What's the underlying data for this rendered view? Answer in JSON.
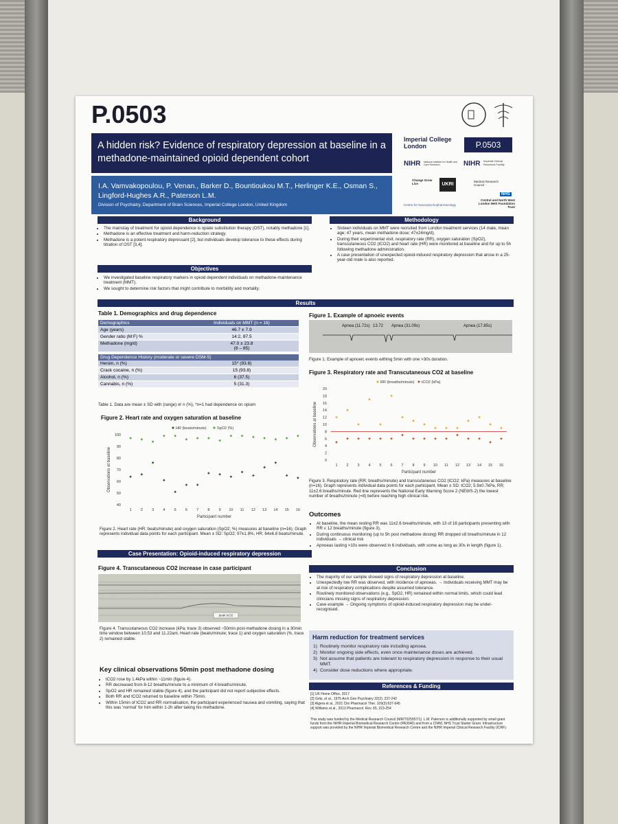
{
  "header": {
    "code": "P.0503",
    "title": "A hidden risk? Evidence of respiratory depression at baseline in a methadone-maintained opioid dependent cohort",
    "authors": "I.A. Vamvakopoulou, P. Venan., Barker D., Bountioukou M.T., Herlinger K.E., Osman S., Lingford-Hughes A.R., Paterson L.M.",
    "affiliation": "Division of Psychiatry, Department of Brain Sciences, Imperial College London, United Kingdom"
  },
  "logos": {
    "imperial": "Imperial College London",
    "badge": "P.0503",
    "nihr1": "NIHR",
    "nihr1_sub": "National Institute for Health and Care Research",
    "nihr2": "NIHR",
    "nihr2_sub": "Imperial Clinical Research Facility",
    "cgl": "Change Grow Live",
    "ukri": "UKRI",
    "mrc": "Medical Research Council",
    "cnp": "Centre for Neuropsychopharmacology",
    "nhs": "NHS",
    "nhs_sub": "Central and North West London NHS Foundation Trust"
  },
  "background": {
    "heading": "Background",
    "items": [
      "The mainstay of treatment for opioid dependence is opiate substitution therapy (OST), notably methadone [1].",
      "Methadone is an effective treatment and harm-reduction strategy.",
      "Methadone is a potent respiratory depressant [2], but individuals develop tolerance to these effects during titration of OST [3,4]."
    ]
  },
  "objectives": {
    "heading": "Objectives",
    "items": [
      "We investigated baseline respiratory markers in opioid dependent individuals on methadone-maintenance treatment (MMT).",
      "We sought to determine risk factors that might contribute to morbidity and mortality."
    ]
  },
  "methodology": {
    "heading": "Methodology",
    "items": [
      "Sixteen individuals on MMT were recruited from London treatment services (14 male, mean age; 47 years, mean methadone dose; 47±24mg/d).",
      "During their experimental visit, respiratory rate (RR), oxygen saturation (SpO2), transcutaneous CO2 (tCO2) and heart rate (HR) were monitored at baseline and for up to 5h following methadone administration.",
      "A case presentation of unexpected opioid-induced respiratory depression that arose in a 25-year-old male is also reported."
    ]
  },
  "results_heading": "Results",
  "table1": {
    "title": "Table 1. Demographics and drug dependence",
    "header": [
      "Demographics",
      "Individuals on MMT (n = 16)"
    ],
    "rows": [
      [
        "Age (years)",
        "46.7 ± 7.9"
      ],
      [
        "Gender ratio (M:F) %",
        "14:2, 87.5"
      ],
      [
        "Methadone (mg/d)",
        "47.0 ± 23.8\n(8 – 85)"
      ]
    ],
    "header2": "Drug Dependence History (moderate or severe DSM-5)",
    "rows2": [
      [
        "Heroin, n (%)",
        "15* (93.8)"
      ],
      [
        "Crack cocaine, n (%)",
        "15 (93.8)"
      ],
      [
        "Alcohol, n (%)",
        "6 (37.5)"
      ],
      [
        "Cannabis, n (%)",
        "5 (31.3)"
      ]
    ],
    "caption": "Table 1. Data are mean ± SD with (range) or n (%), *n=1 had dependence on opium"
  },
  "figure1": {
    "title": "Figure 1. Example of apnoeic events",
    "labels": [
      "Apnea (11.72s)",
      "13.72",
      "Apnea (31.09s)",
      "Apnea (17.85s)"
    ],
    "caption": "Figure 1. Example of apnoeic events withing 5min with one >30s duration."
  },
  "figure2": {
    "title": "Figure 2. Heart rate and oxygen saturation at baseline",
    "caption": "Figure 2. Heart rate (HR; beats/minute) and oxygen saturation (SpO2; %) measures at baseline (n=16). Graph represents individual data points for each participant. Mean ± SD: SpO2; 97±1.8%, HR; 64±6.8 beats/minute."
  },
  "figure3": {
    "title": "Figure 3. Respiratory rate and Transcutaneous CO2 at baseline",
    "caption": "Figure 3. Respiratory rate (RR; breaths/minute) and transcutaneous CO2 (tCO2; kPa) measures at baseline (n=16). Graph represents individual data points for each participant. Mean ± SD: tCO2; 5.9±0.7kPa, RR; 11±2.6 breaths/minute. Red line represents the National Early Warning Score 2 (NEWS-2) the lowest number of breaths/minute (=8) before reaching high clinical risk."
  },
  "case": {
    "heading": "Case Presentation: Opioid-induced respiratory depression",
    "figure_title": "Figure 4. Transcutaneous CO2 increase in case participant",
    "image_label": "peak tcO2",
    "caption": "Figure 4. Transcutaneous CO2 increase (kPa; trace 3) observed ~50min post-methadone dosing in a 30min time window between 10.53 and 11.22am. Heart rate (beats/minute; trace 1) and oxygen saturation (%, trace 2) remained stable."
  },
  "key_observations": {
    "heading": "Key clinical observations 50min post methadone dosing",
    "items": [
      "tCO2 rose by 1.4kPa within ~11min (figure 4).",
      "RR decreased from 8-12 breaths/minute to a minimum of 4 breaths/minute.",
      "SpO2 and HR remained stable (figure 4), and the participant did not report subjective effects.",
      "Both RR and tCO2 returned to baseline within 75min.",
      "Within 15min of tCO2 and RR normalisation, the participant experienced nausea and vomiting, saying that this was 'normal' for him within 1-2h after taking his methadone."
    ]
  },
  "outcomes": {
    "heading": "Outcomes",
    "items": [
      "At baseline, the mean resting RR was 11±2.6 breaths/minute, with 13 of 16 participants presenting with RR ≤ 12 breaths/minute (figure 3).",
      "During continuous monitoring (up to 5h post methadone dosing) RR dropped ≤8 breaths/minute in 12 individuals → clinical risk",
      "Apnoeas lasting >10s were observed in 6 individuals, with some as long as 30s in length (figure 1)."
    ]
  },
  "conclusion": {
    "heading": "Conclusion",
    "items": [
      "The majority of our sample showed signs of respiratory depression at baseline.",
      "Unexpectedly low RR was observed, with incidence of apnoeas. → Individuals receiving MMT may be at risk of respiratory complications despite assumed tolerance.",
      "Routinely monitored observations (e.g., SpO2, HR) remained within normal limits, which could lead clinicians missing signs of respiratory depression.",
      "Case example → Ongoing symptoms of opioid-induced respiratory depression may be under-recognised."
    ]
  },
  "harm_reduction": {
    "heading": "Harm reduction for treatment services",
    "items": [
      "Routinely monitor respiratory rate including apnoea.",
      "Monitor ongoing side effects, even once maintenance doses are achieved.",
      "Not assume that patients are tolerant to respiratory depression in response to their usual MMT.",
      "Consider dose reductions where appropriate."
    ]
  },
  "references": {
    "heading": "References & Funding",
    "items": [
      "[1] UK Home Office, 2017",
      "[2] Gritz, et al., 1975 Arch Gen Psychiatry 32(2); 237-242",
      "[3] Algera et al., 2021 Clin Pharmacol Ther. 109(3):637-645",
      "[4] Williams et al., 2013 Pharmacol. Rev. 65, 223-254"
    ],
    "funding": "This study was funded by the Medical Research Council (MR/T025557/1). L.M. Paterson is additionally supported by small grant funds from the NIHR Imperial Biomedical Research Centre (PA3040) and from a CNWL NHS Trust Starter Grant. Infrastructure support was provided by the NIHR Imperial Biomedical Research Centre and the NIHR Imperial Clinical Research Facility (ICRF)."
  },
  "chart_data": [
    {
      "type": "scatter",
      "xlabel": "Participant number",
      "ylabel": "Observations at baseline",
      "categories": [
        "1",
        "2",
        "3",
        "4",
        "5",
        "6",
        "7",
        "8",
        "9",
        "10",
        "11",
        "12",
        "13",
        "14",
        "15",
        "16"
      ],
      "ylim": [
        40,
        100
      ],
      "yticks": [
        40,
        50,
        60,
        70,
        80,
        90,
        100
      ],
      "grid": false,
      "series": [
        {
          "name": "HR (beats/minute)",
          "color": "#2f5d2a",
          "values": [
            64,
            66,
            76,
            61,
            51,
            57,
            57,
            67,
            66,
            64,
            68,
            65,
            72,
            76,
            65,
            63
          ]
        },
        {
          "name": "SpO2 (%)",
          "color": "#5ea343",
          "values": [
            97,
            96,
            94,
            99,
            99,
            96,
            97,
            97,
            95,
            99,
            99,
            98,
            97,
            96,
            97,
            99
          ]
        }
      ]
    },
    {
      "type": "scatter",
      "xlabel": "Participant number",
      "ylabel": "Observations at baseline",
      "categories": [
        "1",
        "2",
        "3",
        "4",
        "5",
        "6",
        "7",
        "8",
        "9",
        "10",
        "11",
        "12",
        "13",
        "14",
        "15",
        "16"
      ],
      "ylim": [
        0,
        20
      ],
      "yticks": [
        0,
        2,
        4,
        6,
        8,
        10,
        12,
        14,
        16,
        18,
        20
      ],
      "grid": false,
      "reference_line": {
        "value": 8,
        "color": "#d42020"
      },
      "series": [
        {
          "name": "RR (breaths/minute)",
          "color": "#f0a830",
          "values": [
            12,
            14,
            10,
            17,
            10,
            18,
            12,
            11,
            10,
            9,
            9,
            9,
            11,
            12,
            10,
            9
          ]
        },
        {
          "name": "tCO2 (kPa)",
          "color": "#c2571a",
          "values": [
            5,
            6,
            6,
            6,
            6,
            6,
            7,
            6,
            6,
            6,
            6,
            7,
            6,
            6,
            5,
            6
          ]
        }
      ]
    }
  ]
}
